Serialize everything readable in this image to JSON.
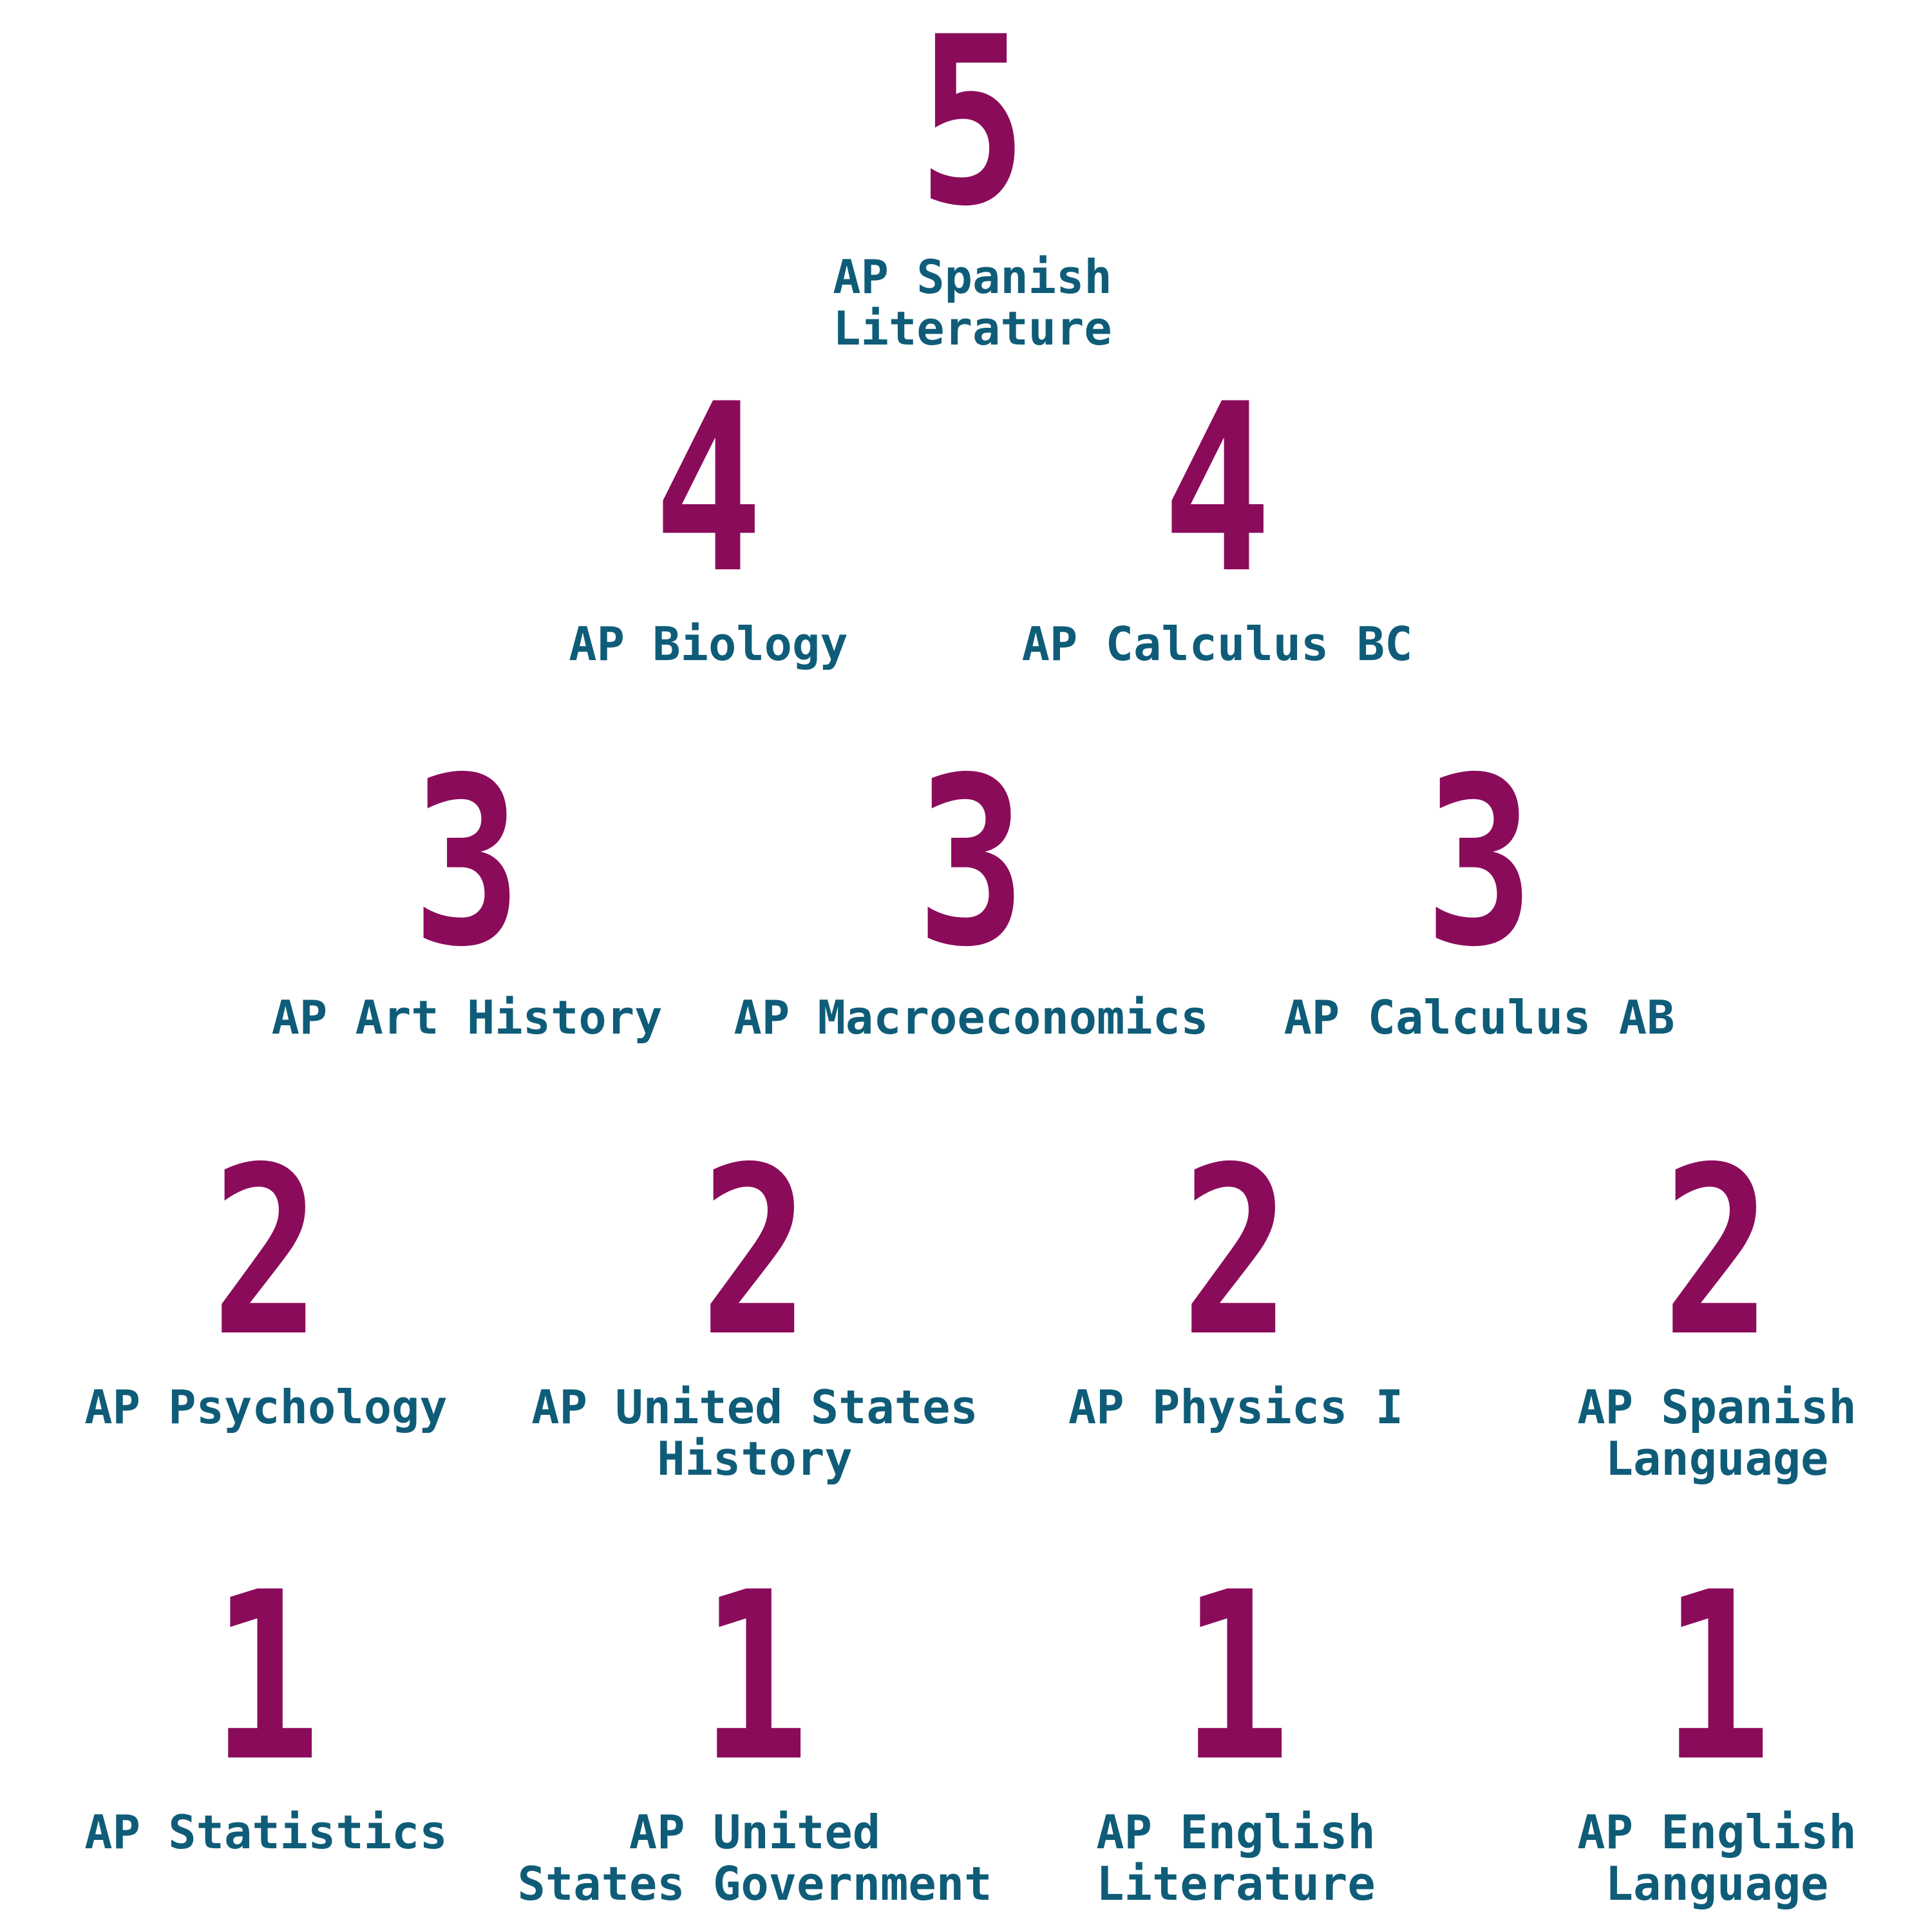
{
  "colors": {
    "score": "#8b0b5b",
    "subject": "#0f5c78",
    "background": "#ffffff"
  },
  "rows": [
    {
      "items": [
        {
          "score": "5",
          "subject": "AP Spanish Literature"
        }
      ]
    },
    {
      "items": [
        {
          "score": "4",
          "subject": "AP Biology"
        },
        {
          "score": "4",
          "subject": "AP Calculus BC"
        }
      ]
    },
    {
      "items": [
        {
          "score": "3",
          "subject": "AP Art History"
        },
        {
          "score": "3",
          "subject": "AP Macroeconomics"
        },
        {
          "score": "3",
          "subject": "AP Calculus AB"
        }
      ]
    },
    {
      "items": [
        {
          "score": "2",
          "subject": "AP Psychology"
        },
        {
          "score": "2",
          "subject": "AP United States\nHistory"
        },
        {
          "score": "2",
          "subject": "AP Physics I"
        },
        {
          "score": "2",
          "subject": "AP Spanish\nLanguage"
        }
      ]
    },
    {
      "items": [
        {
          "score": "1",
          "subject": "AP Statistics"
        },
        {
          "score": "1",
          "subject": "AP United\nStates Government"
        },
        {
          "score": "1",
          "subject": "AP English\nLiterature"
        },
        {
          "score": "1",
          "subject": "AP English\nLanguage"
        }
      ]
    }
  ]
}
